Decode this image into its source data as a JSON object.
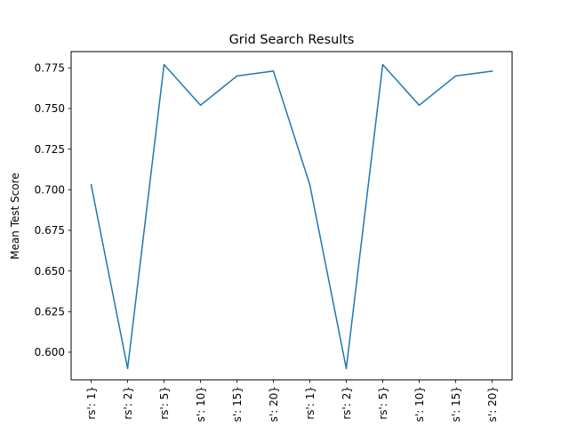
{
  "chart_data": {
    "type": "line",
    "title": "Grid Search Results",
    "xlabel": "",
    "ylabel": "Mean Test Score",
    "categories": [
      "rs': 1}",
      "rs': 2}",
      "rs': 5}",
      "s': 10}",
      "s': 15}",
      "s': 20}",
      "rs': 1}",
      "rs': 2}",
      "rs': 5}",
      "s': 10}",
      "s': 15}",
      "s': 20}"
    ],
    "values": [
      0.703,
      0.59,
      0.777,
      0.752,
      0.77,
      0.773,
      0.703,
      0.59,
      0.777,
      0.752,
      0.77,
      0.773
    ],
    "ylim": [
      0.583,
      0.785
    ],
    "yticks": [
      0.6,
      0.625,
      0.65,
      0.675,
      0.7,
      0.725,
      0.75,
      0.775
    ],
    "ytick_labels": [
      "0.600",
      "0.625",
      "0.650",
      "0.675",
      "0.700",
      "0.725",
      "0.750",
      "0.775"
    ],
    "line_color": "#1f77b4",
    "grid": false,
    "legend": "none"
  }
}
